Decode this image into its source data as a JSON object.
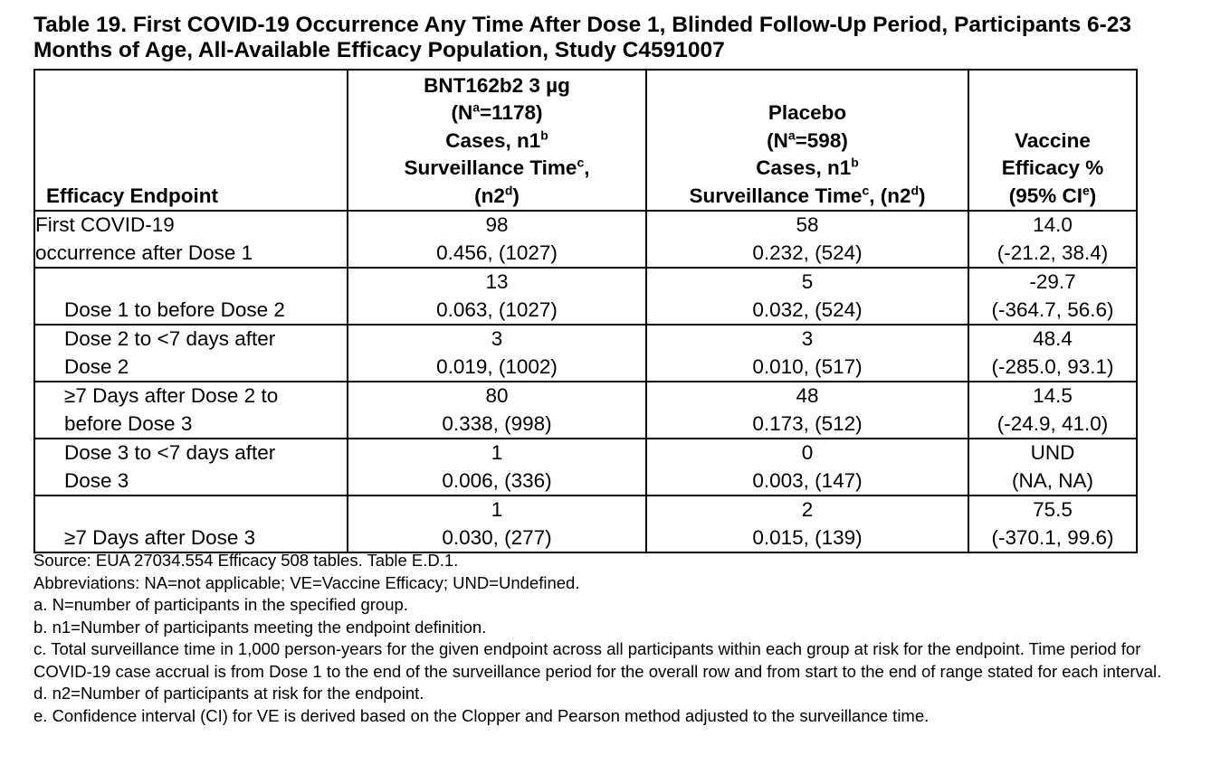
{
  "title": "Table 19. First COVID-19 Occurrence Any Time After Dose 1, Blinded Follow-Up Period, Participants 6-23 Months of Age, All-Available Efficacy Population, Study C4591007",
  "header": {
    "endpoint": "Efficacy Endpoint",
    "vaccine": {
      "name": "BNT162b2 3 µg",
      "n_label": "(N",
      "n_sup": "a",
      "n_value": "=1178)",
      "cases": "Cases, n1",
      "cases_sup": "b",
      "surv": "Surveillance Time",
      "surv_sup": "c",
      "surv_comma": ",",
      "n2_open": "(n2",
      "n2_sup": "d",
      "n2_close": ")"
    },
    "placebo": {
      "name": "Placebo",
      "n_label": "(N",
      "n_sup": "a",
      "n_value": "=598)",
      "cases": "Cases, n1",
      "cases_sup": "b",
      "surv": "Surveillance Time",
      "surv_sup": "c",
      "surv_n2_open": ", (n2",
      "n2_sup": "d",
      "n2_close": ")"
    },
    "ve": {
      "line1": "Vaccine",
      "line2": "Efficacy %",
      "ci_open": "(95% CI",
      "ci_sup": "e",
      "ci_close": ")"
    }
  },
  "rows": [
    {
      "label": [
        "First COVID-19",
        "occurrence after Dose 1"
      ],
      "vaccine": [
        "98",
        "0.456, (1027)"
      ],
      "placebo": [
        "58",
        "0.232, (524)"
      ],
      "ve": [
        "14.0",
        "(-21.2, 38.4)"
      ]
    },
    {
      "label": [
        "Dose 1 to before Dose 2"
      ],
      "vaccine": [
        "13",
        "0.063, (1027)"
      ],
      "placebo": [
        "5",
        "0.032, (524)"
      ],
      "ve": [
        "-29.7",
        "(-364.7, 56.6)"
      ]
    },
    {
      "label": [
        "Dose 2 to <7 days after",
        "Dose 2"
      ],
      "vaccine": [
        "3",
        "0.019, (1002)"
      ],
      "placebo": [
        "3",
        "0.010, (517)"
      ],
      "ve": [
        "48.4",
        "(-285.0, 93.1)"
      ]
    },
    {
      "label": [
        "≥7 Days after Dose 2 to",
        "before Dose 3"
      ],
      "vaccine": [
        "80",
        "0.338, (998)"
      ],
      "placebo": [
        "48",
        "0.173, (512)"
      ],
      "ve": [
        "14.5",
        "(-24.9, 41.0)"
      ]
    },
    {
      "label": [
        "Dose 3 to <7 days after",
        "Dose 3"
      ],
      "vaccine": [
        "1",
        "0.006, (336)"
      ],
      "placebo": [
        "0",
        "0.003, (147)"
      ],
      "ve": [
        "UND",
        "(NA, NA)"
      ]
    },
    {
      "label": [
        "≥7 Days after Dose 3"
      ],
      "vaccine": [
        "1",
        "0.030, (277)"
      ],
      "placebo": [
        "2",
        "0.015, (139)"
      ],
      "ve": [
        "75.5",
        "(-370.1, 99.6)"
      ]
    }
  ],
  "notes": [
    "Source: EUA 27034.554 Efficacy 508 tables. Table E.D.1.",
    "Abbreviations: NA=not applicable; VE=Vaccine Efficacy; UND=Undefined.",
    "a. N=number of participants in the specified group.",
    "b. n1=Number of participants meeting the endpoint definition.",
    "c. Total surveillance time in 1,000 person-years for the given endpoint across all participants within each group at risk for the endpoint. Time period for COVID-19 case accrual is from Dose 1 to the end of the surveillance period for the overall row and from start to the end of range stated for each interval.",
    "d. n2=Number of participants at risk for the endpoint.",
    "e. Confidence interval (CI) for VE is derived based on the Clopper and Pearson method adjusted to the surveillance time."
  ]
}
